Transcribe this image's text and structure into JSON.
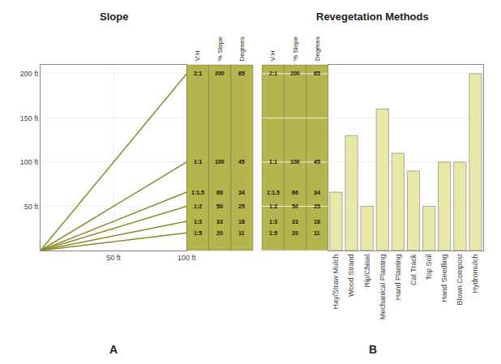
{
  "chart_data": [
    {
      "type": "line",
      "title": "Slope",
      "x": [
        0,
        100
      ],
      "series": [
        {
          "color": "#8B8B2B",
          "values": [
            0,
            200
          ]
        },
        {
          "color": "#8B8B2B",
          "values": [
            0,
            100
          ]
        },
        {
          "color": "#8B8B2B",
          "values": [
            0,
            66
          ]
        },
        {
          "color": "#8B8B2B",
          "values": [
            0,
            50
          ]
        },
        {
          "color": "#8B8B2B",
          "values": [
            0,
            33
          ]
        },
        {
          "color": "#8B8B2B",
          "values": [
            0,
            20
          ]
        }
      ],
      "xlim": [
        0,
        100
      ],
      "ylim": [
        0,
        210
      ],
      "xticks": [
        {
          "value": 50,
          "label": "50 ft"
        },
        {
          "value": 100,
          "label": "100 ft"
        }
      ],
      "yticks": [
        {
          "value": 50,
          "label": "50 ft"
        },
        {
          "value": 100,
          "label": "100 ft"
        },
        {
          "value": 150,
          "label": "150 ft"
        },
        {
          "value": 200,
          "label": "200 ft"
        }
      ],
      "grid": true,
      "table": {
        "color": "#B5B550",
        "headers": [
          "V:H",
          "% Slope",
          "Degrees"
        ],
        "rows": [
          [
            "2:1",
            "200",
            "65"
          ],
          [
            "1:1",
            "100",
            "45"
          ],
          [
            "1:1.5",
            "66",
            "34"
          ],
          [
            "1:2",
            "50",
            "25"
          ],
          [
            "1:3",
            "33",
            "18"
          ],
          [
            "1:5",
            "20",
            "11"
          ]
        ],
        "row_y": [
          200,
          100,
          66,
          50,
          33,
          20
        ]
      },
      "annotations": [
        {
          "text": "A"
        }
      ]
    },
    {
      "type": "bar",
      "title": "Revegetation Methods",
      "categories": [
        "Hay/Straw Mulch",
        "Wood Strand",
        "Rip/Chisel",
        "Mechanical Planting",
        "Hand Planting",
        "Cat Track",
        "Top Soil",
        "Hand Seedling",
        "Blown Compost",
        "Hydromulch"
      ],
      "values": [
        66,
        130,
        50,
        160,
        110,
        90,
        50,
        100,
        100,
        200
      ],
      "color": "#E8E8A8",
      "ylim": [
        0,
        210
      ],
      "yticks": [
        0,
        50,
        100,
        150,
        200
      ],
      "tick_labels": "x",
      "grid": true,
      "table": {
        "color": "#B5B550",
        "headers": [
          "V:H",
          "% Slope",
          "Degrees"
        ],
        "rows": [
          [
            "2:1",
            "200",
            "65"
          ],
          [
            "1:1",
            "100",
            "45"
          ],
          [
            "1:1.5",
            "66",
            "34"
          ],
          [
            "1:2",
            "50",
            "25"
          ],
          [
            "1:3",
            "33",
            "18"
          ],
          [
            "1:5",
            "20",
            "11"
          ]
        ],
        "row_y": [
          200,
          100,
          66,
          50,
          33,
          20
        ]
      },
      "annotations": [
        {
          "text": "B"
        }
      ]
    }
  ]
}
